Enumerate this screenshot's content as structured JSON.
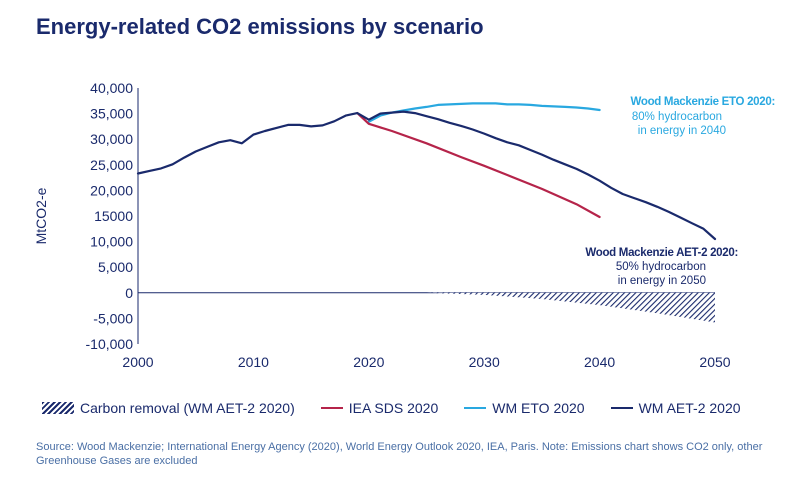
{
  "title": "Energy-related CO2 emissions by scenario",
  "source": "Source: Wood Mackenzie; International Energy Agency (2020), World Energy Outlook 2020, IEA, Paris. Note: Emissions chart shows CO2 only, other Greenhouse Gases are excluded",
  "colors": {
    "navy": "#1a2a6c",
    "light_blue": "#29a8e0",
    "red": "#b5244a",
    "text": "#1a2a6c",
    "source_text": "#4a6fa5"
  },
  "annotations": {
    "eto": {
      "head": "Wood Mackenzie ETO 2020:",
      "line1": "80% hydrocarbon",
      "line2": "in energy in 2040"
    },
    "aet": {
      "head": "Wood Mackenzie AET-2 2020:",
      "line1": "50% hydrocarbon",
      "line2": "in energy in 2050"
    }
  },
  "legend": [
    {
      "label": "Carbon removal (WM AET-2 2020)",
      "kind": "hatch",
      "color": "#1a2a6c"
    },
    {
      "label": "IEA SDS 2020",
      "kind": "line",
      "color": "#b5244a"
    },
    {
      "label": "WM ETO 2020",
      "kind": "line",
      "color": "#29a8e0"
    },
    {
      "label": "WM AET-2 2020",
      "kind": "line",
      "color": "#1a2a6c"
    }
  ],
  "chart_data": {
    "type": "line",
    "title": "Energy-related CO2 emissions by scenario",
    "ylabel": "MtCO2-e",
    "xlabel": "",
    "xlim": [
      2000,
      2050
    ],
    "ylim": [
      -10000,
      40000
    ],
    "xticks": [
      "2000",
      "2010",
      "2020",
      "2030",
      "2040",
      "2050"
    ],
    "yticks": [
      "40,000",
      "35,000",
      "30,000",
      "25,000",
      "20,000",
      "15000",
      "10,000",
      "5,000",
      "0",
      "-5,000",
      "-10,000"
    ],
    "grid": false,
    "legend_position": "bottom",
    "series": [
      {
        "name": "WM AET-2 2020",
        "color": "#1a2a6c",
        "x": [
          2000,
          2001,
          2002,
          2003,
          2004,
          2005,
          2006,
          2007,
          2008,
          2009,
          2010,
          2011,
          2012,
          2013,
          2014,
          2015,
          2016,
          2017,
          2018,
          2019,
          2020,
          2021,
          2022,
          2023,
          2024,
          2025,
          2026,
          2027,
          2028,
          2029,
          2030,
          2031,
          2032,
          2033,
          2034,
          2035,
          2036,
          2037,
          2038,
          2039,
          2040,
          2041,
          2042,
          2043,
          2044,
          2045,
          2046,
          2047,
          2048,
          2049,
          2050
        ],
        "y": [
          23300,
          23800,
          24300,
          25100,
          26400,
          27600,
          28500,
          29400,
          29800,
          29200,
          30900,
          31600,
          32200,
          32800,
          32800,
          32500,
          32700,
          33500,
          34600,
          35100,
          33800,
          35000,
          35200,
          35400,
          35100,
          34500,
          33900,
          33200,
          32600,
          31900,
          31100,
          30200,
          29400,
          28800,
          27900,
          27000,
          26000,
          25100,
          24200,
          23100,
          21900,
          20500,
          19300,
          18500,
          17700,
          16800,
          15800,
          14700,
          13600,
          12500,
          10500
        ]
      },
      {
        "name": "WM ETO 2020",
        "color": "#29a8e0",
        "x": [
          2020,
          2021,
          2022,
          2023,
          2024,
          2025,
          2026,
          2027,
          2028,
          2029,
          2030,
          2031,
          2032,
          2033,
          2034,
          2035,
          2036,
          2037,
          2038,
          2039,
          2040
        ],
        "y": [
          33400,
          34600,
          35200,
          35600,
          36000,
          36300,
          36700,
          36800,
          36900,
          37000,
          37000,
          37000,
          36800,
          36800,
          36700,
          36500,
          36400,
          36300,
          36200,
          36000,
          35700
        ]
      },
      {
        "name": "IEA SDS 2020",
        "color": "#b5244a",
        "x": [
          2019,
          2020,
          2022,
          2025,
          2028,
          2030,
          2032,
          2035,
          2038,
          2040
        ],
        "y": [
          35100,
          33000,
          31600,
          29200,
          26500,
          24800,
          23000,
          20300,
          17300,
          14800
        ]
      },
      {
        "name": "Carbon removal (WM AET-2 2020)",
        "color": "#1a2a6c",
        "x": [
          2025,
          2030,
          2035,
          2040,
          2045,
          2050
        ],
        "y": [
          0,
          -400,
          -1200,
          -2400,
          -4000,
          -5800
        ]
      }
    ]
  }
}
